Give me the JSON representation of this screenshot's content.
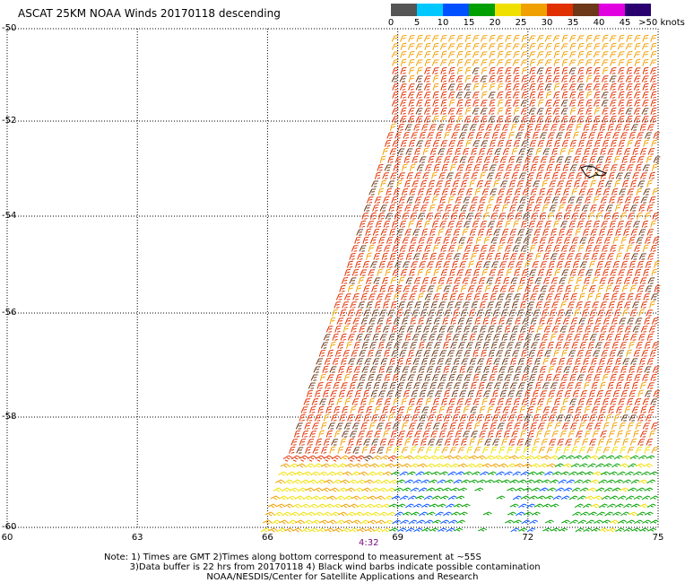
{
  "title": "ASCAT 25KM NOAA Winds 20170118 descending",
  "color_scale": {
    "swatches": [
      {
        "from": 0,
        "to": 5,
        "color": "#555555"
      },
      {
        "from": 5,
        "to": 10,
        "color": "#00c8ff"
      },
      {
        "from": 10,
        "to": 15,
        "color": "#0050ff"
      },
      {
        "from": 15,
        "to": 20,
        "color": "#00a000"
      },
      {
        "from": 20,
        "to": 25,
        "color": "#f0e000"
      },
      {
        "from": 25,
        "to": 30,
        "color": "#f0a000"
      },
      {
        "from": 30,
        "to": 35,
        "color": "#e03000"
      },
      {
        "from": 35,
        "to": 40,
        "color": "#6b3818"
      },
      {
        "from": 40,
        "to": 45,
        "color": "#e000e0"
      },
      {
        "from": 45,
        "to": 50,
        "color": "#2a0070"
      }
    ],
    "labels": [
      "0",
      "5",
      "10",
      "15",
      "20",
      "25",
      "30",
      "35",
      "40",
      "45",
      ">50 knots"
    ]
  },
  "lat_labels": [
    "-50",
    "-52",
    "-54",
    "-56",
    "-58",
    "-60"
  ],
  "lon_labels": [
    "60",
    "63",
    "66",
    "69",
    "72",
    "75"
  ],
  "time_label": "4:32",
  "notes": [
    "Note: 1) Times are GMT 2)Times along bottom correspond to measurement at ~55S",
    "         3)Data buffer is 22 hrs from 20170118 4) Black wind barbs indicate possible contamination",
    "                                    NOAA/NESDIS/Center for Satellite Applications and Research"
  ],
  "map": {
    "lat_range": [
      -60,
      -50
    ],
    "lon_range": [
      60,
      75
    ],
    "gridlines": "dotted",
    "wind_barbs": "dense swath, strongest 30-40 knots mid-swath, weaker 10-20 knots near -60 at 69-74"
  }
}
